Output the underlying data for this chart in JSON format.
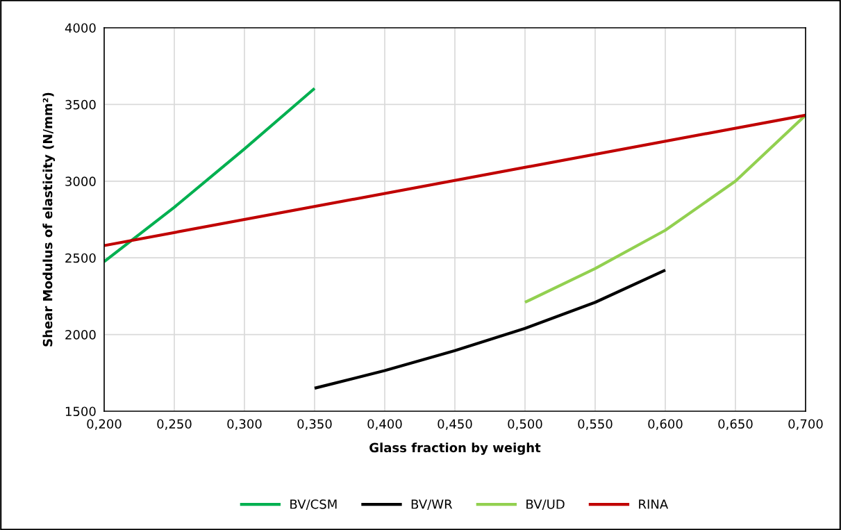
{
  "chart_data": {
    "type": "line",
    "xlabel": "Glass fraction by weight",
    "ylabel": "Shear Modulus of elasticity (N/mm²)",
    "xlim": [
      0.2,
      0.7
    ],
    "ylim": [
      1500,
      4000
    ],
    "xticks": [
      {
        "value": 0.2,
        "label": "0,200"
      },
      {
        "value": 0.25,
        "label": "0,250"
      },
      {
        "value": 0.3,
        "label": "0,300"
      },
      {
        "value": 0.35,
        "label": "0,350"
      },
      {
        "value": 0.4,
        "label": "0,400"
      },
      {
        "value": 0.45,
        "label": "0,450"
      },
      {
        "value": 0.5,
        "label": "0,500"
      },
      {
        "value": 0.55,
        "label": "0,550"
      },
      {
        "value": 0.6,
        "label": "0,600"
      },
      {
        "value": 0.65,
        "label": "0,650"
      },
      {
        "value": 0.7,
        "label": "0,700"
      }
    ],
    "yticks": [
      1500,
      2000,
      2500,
      3000,
      3500,
      4000
    ],
    "grid": true,
    "legend": "bottom",
    "marker": "none",
    "line_style": "solid",
    "series": [
      {
        "name": "BV/CSM",
        "color": "#00b050",
        "x": [
          0.2,
          0.25,
          0.3,
          0.35
        ],
        "values": [
          2475,
          2830,
          3210,
          3605
        ]
      },
      {
        "name": "BV/WR",
        "color": "#000000",
        "x": [
          0.35,
          0.4,
          0.45,
          0.5,
          0.55,
          0.6
        ],
        "values": [
          1650,
          1765,
          1895,
          2040,
          2210,
          2420
        ]
      },
      {
        "name": "BV/UD",
        "color": "#92d050",
        "x": [
          0.5,
          0.55,
          0.6,
          0.65,
          0.7
        ],
        "values": [
          2210,
          2430,
          2680,
          3000,
          3430
        ]
      },
      {
        "name": "RINA",
        "color": "#c00000",
        "x": [
          0.2,
          0.7
        ],
        "values": [
          2580,
          3430
        ]
      }
    ]
  }
}
